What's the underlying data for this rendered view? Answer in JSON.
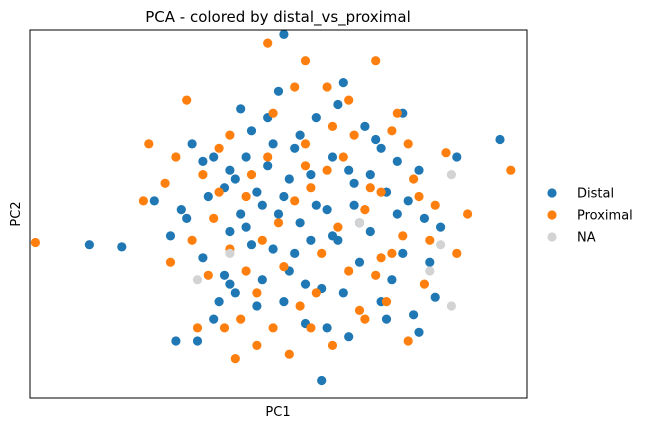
{
  "chart_data": {
    "type": "scatter",
    "title": "PCA - colored by distal_vs_proximal",
    "xlabel": "PC1",
    "ylabel": "PC2",
    "xlim": [
      -4.6,
      4.6
    ],
    "ylim": [
      -4.2,
      4.2
    ],
    "grid": false,
    "ticks": false,
    "legend_position": "right",
    "series": [
      {
        "name": "Distal",
        "color": "#1f77b4",
        "points": [
          [
            -3.5,
            -0.7
          ],
          [
            -2.9,
            -0.75
          ],
          [
            0.1,
            4.1
          ],
          [
            -2.3,
            0.3
          ],
          [
            -2.0,
            -0.5
          ],
          [
            -1.8,
            0.1
          ],
          [
            -1.6,
            1.6
          ],
          [
            -1.4,
            -1.0
          ],
          [
            -1.2,
            1.3
          ],
          [
            -1.0,
            0.6
          ],
          [
            -0.9,
            -1.6
          ],
          [
            -0.8,
            0.8
          ],
          [
            -0.7,
            2.4
          ],
          [
            -0.6,
            -0.3
          ],
          [
            -0.5,
            1.9
          ],
          [
            -0.4,
            -2.1
          ],
          [
            -0.3,
            0.2
          ],
          [
            -0.2,
            1.1
          ],
          [
            -0.1,
            -0.8
          ],
          [
            0.0,
            2.8
          ],
          [
            0.1,
            0.4
          ],
          [
            0.2,
            -1.3
          ],
          [
            0.3,
            1.5
          ],
          [
            0.4,
            -0.2
          ],
          [
            0.5,
            -2.5
          ],
          [
            0.6,
            0.9
          ],
          [
            0.7,
            2.2
          ],
          [
            0.8,
            -1.7
          ],
          [
            0.9,
            0.1
          ],
          [
            1.0,
            1.3
          ],
          [
            1.1,
            -0.6
          ],
          [
            1.2,
            3.0
          ],
          [
            1.3,
            -2.8
          ],
          [
            1.4,
            0.7
          ],
          [
            1.5,
            -1.1
          ],
          [
            1.6,
            2.0
          ],
          [
            1.7,
            -0.4
          ],
          [
            1.8,
            1.7
          ],
          [
            1.9,
            -2.0
          ],
          [
            2.0,
            0.5
          ],
          [
            2.1,
            -1.5
          ],
          [
            2.2,
            1.2
          ],
          [
            2.3,
            -0.9
          ],
          [
            2.4,
            0.3
          ],
          [
            2.5,
            -2.3
          ],
          [
            2.6,
            1.0
          ],
          [
            2.7,
            -0.1
          ],
          [
            2.9,
            -1.9
          ],
          [
            3.0,
            -0.3
          ],
          [
            3.3,
            1.3
          ],
          [
            4.1,
            1.7
          ],
          [
            -1.9,
            -2.9
          ],
          [
            -1.5,
            -2.9
          ],
          [
            0.8,
            -3.8
          ],
          [
            -1.1,
            -2.0
          ],
          [
            -0.9,
            1.0
          ],
          [
            0.3,
            -0.9
          ],
          [
            1.0,
            -0.5
          ],
          [
            0.0,
            0.0
          ],
          [
            -0.4,
            0.5
          ],
          [
            0.6,
            -0.6
          ],
          [
            1.4,
            0.2
          ],
          [
            -1.0,
            -1.4
          ],
          [
            -0.3,
            -1.5
          ],
          [
            0.4,
            1.8
          ],
          [
            1.2,
            -1.8
          ],
          [
            2.0,
            -2.4
          ],
          [
            -1.3,
            0.4
          ],
          [
            0.9,
            -2.6
          ],
          [
            2.3,
            2.3
          ],
          [
            -0.5,
            -0.7
          ],
          [
            -0.1,
            1.6
          ],
          [
            1.7,
            0.9
          ],
          [
            -0.8,
            -1.8
          ],
          [
            -0.6,
            1.3
          ],
          [
            0.2,
            0.8
          ],
          [
            1.5,
            -0.2
          ],
          [
            2.8,
            -1.1
          ],
          [
            0.5,
            -1.6
          ],
          [
            -1.7,
            -0.1
          ],
          [
            -0.2,
            2.2
          ],
          [
            1.1,
            2.5
          ],
          [
            -1.2,
            -2.4
          ],
          [
            0.7,
            0.2
          ],
          [
            2.6,
            -2.7
          ],
          [
            -0.7,
            0.0
          ],
          [
            1.9,
            1.5
          ],
          [
            0.1,
            -2.0
          ],
          [
            -1.4,
            1.2
          ],
          [
            2.2,
            0.0
          ],
          [
            1.3,
            1.0
          ],
          [
            -0.9,
            -0.4
          ]
        ]
      },
      {
        "name": "Proximal",
        "color": "#ff7f0e",
        "points": [
          [
            -4.5,
            -0.65
          ],
          [
            -0.2,
            3.9
          ],
          [
            0.5,
            3.5
          ],
          [
            1.8,
            3.5
          ],
          [
            -1.7,
            2.6
          ],
          [
            -1.3,
            -1.4
          ],
          [
            -1.1,
            0.5
          ],
          [
            -0.9,
            1.8
          ],
          [
            -0.7,
            -2.4
          ],
          [
            -0.5,
            0.9
          ],
          [
            -0.3,
            -0.6
          ],
          [
            -0.1,
            2.3
          ],
          [
            0.1,
            -1.2
          ],
          [
            0.3,
            0.3
          ],
          [
            0.5,
            1.6
          ],
          [
            0.7,
            -1.8
          ],
          [
            0.9,
            1.0
          ],
          [
            1.1,
            -0.3
          ],
          [
            1.3,
            2.6
          ],
          [
            1.5,
            -2.2
          ],
          [
            1.7,
            0.6
          ],
          [
            1.9,
            -1.0
          ],
          [
            2.1,
            1.9
          ],
          [
            2.3,
            -0.5
          ],
          [
            2.5,
            0.8
          ],
          [
            2.7,
            -1.6
          ],
          [
            2.9,
            0.2
          ],
          [
            3.1,
            1.4
          ],
          [
            3.3,
            -0.9
          ],
          [
            -2.1,
            0.7
          ],
          [
            -2.5,
            0.3
          ],
          [
            -2.0,
            -1.1
          ],
          [
            -1.5,
            -2.6
          ],
          [
            -0.8,
            -3.3
          ],
          [
            -0.4,
            -3.0
          ],
          [
            0.2,
            -3.2
          ],
          [
            1.0,
            -3.0
          ],
          [
            1.6,
            -2.4
          ],
          [
            2.4,
            -2.9
          ],
          [
            -2.4,
            1.6
          ],
          [
            -1.9,
            1.3
          ],
          [
            3.5,
            0.0
          ],
          [
            4.3,
            1.0
          ],
          [
            -1.2,
            -0.1
          ],
          [
            -0.6,
            -1.3
          ],
          [
            0.0,
            -0.2
          ],
          [
            0.6,
            0.6
          ],
          [
            1.2,
            1.3
          ],
          [
            1.8,
            -1.4
          ],
          [
            2.6,
            0.4
          ],
          [
            -0.9,
            -0.8
          ],
          [
            0.4,
            -2.1
          ],
          [
            1.4,
            1.8
          ],
          [
            2.2,
            2.3
          ],
          [
            -0.2,
            1.3
          ],
          [
            0.8,
            -0.9
          ],
          [
            1.6,
            0.1
          ],
          [
            2.0,
            -2.0
          ],
          [
            -1.4,
            0.9
          ],
          [
            0.3,
            2.9
          ],
          [
            -0.4,
            -1.8
          ],
          [
            1.0,
            2.0
          ],
          [
            2.8,
            -0.6
          ],
          [
            -1.0,
            -2.6
          ],
          [
            0.6,
            -2.6
          ],
          [
            -0.6,
            0.4
          ],
          [
            1.9,
            0.5
          ],
          [
            2.4,
            1.6
          ],
          [
            -1.6,
            -0.6
          ],
          [
            0.9,
            2.9
          ],
          [
            1.3,
            -1.3
          ],
          [
            -0.1,
            -2.6
          ],
          [
            2.1,
            -0.9
          ],
          [
            0.5,
            1.1
          ],
          [
            -1.1,
            1.5
          ]
        ]
      },
      {
        "name": "NA",
        "color": "#d3d3d3",
        "points": [
          [
            -0.9,
            -0.9
          ],
          [
            -1.5,
            -1.5
          ],
          [
            3.2,
            0.9
          ],
          [
            3.0,
            -0.7
          ],
          [
            2.8,
            -1.3
          ],
          [
            3.2,
            -2.1
          ],
          [
            1.5,
            -0.2
          ]
        ]
      }
    ]
  }
}
